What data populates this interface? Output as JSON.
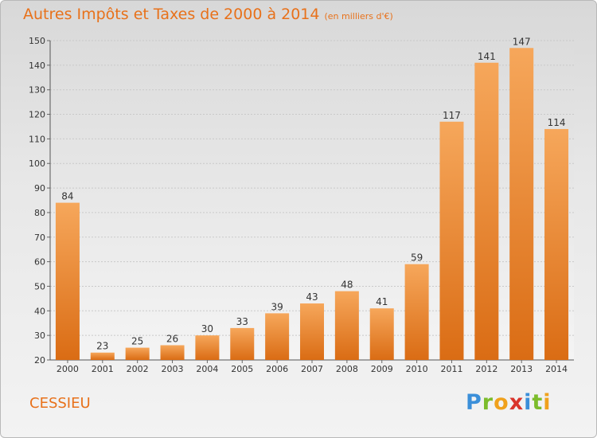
{
  "title": "Autres Impôts et Taxes de 2000 à 2014",
  "unit": "(en milliers d'€)",
  "commune": "CESSIEU",
  "brand": {
    "letters": [
      "P",
      "r",
      "o",
      "x",
      "i",
      "t",
      "i"
    ],
    "colors": [
      "#3b8fd9",
      "#7cbc2b",
      "#f0a11c",
      "#d9342b",
      "#3b8fd9",
      "#7cbc2b",
      "#f0a11c"
    ]
  },
  "colors": {
    "accent": "#e8711a",
    "bar_top": "#f6a75b",
    "bar_bottom": "#da6c14"
  },
  "chart_data": {
    "type": "bar",
    "categories": [
      "2000",
      "2001",
      "2002",
      "2003",
      "2004",
      "2005",
      "2006",
      "2007",
      "2008",
      "2009",
      "2010",
      "2011",
      "2012",
      "2013",
      "2014"
    ],
    "values": [
      84,
      23,
      25,
      26,
      30,
      33,
      39,
      43,
      48,
      41,
      59,
      117,
      141,
      147,
      114
    ],
    "ylim": [
      20,
      150
    ],
    "yticks": [
      20,
      30,
      40,
      50,
      60,
      70,
      80,
      90,
      100,
      110,
      120,
      130,
      140,
      150
    ],
    "grid": true,
    "xlabel": "",
    "ylabel": ""
  }
}
